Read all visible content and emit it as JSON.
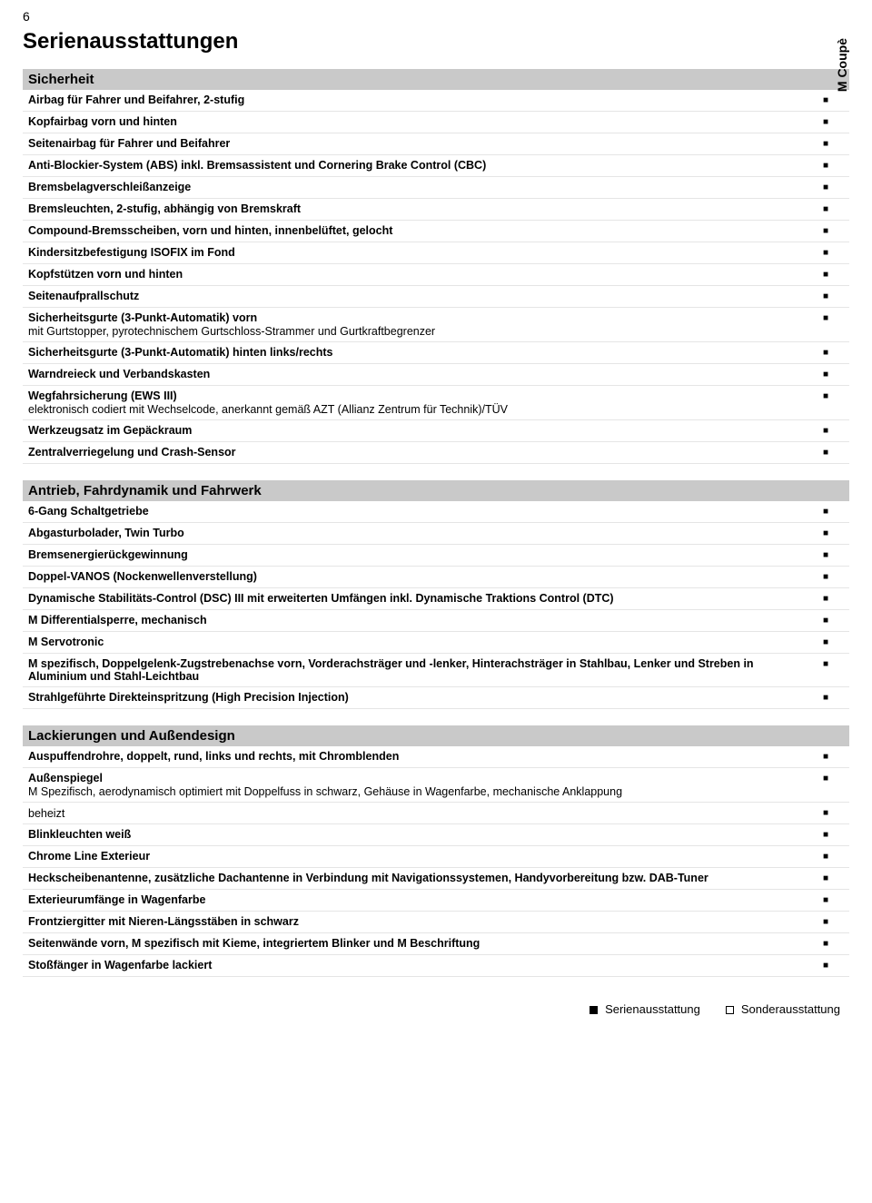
{
  "page_number": "6",
  "page_title": "Serienausstattungen",
  "column_label": "M Coupè",
  "mark_true": "■",
  "legend": {
    "standard": "Serienausstattung",
    "optional": "Sonderausstattung"
  },
  "sections": [
    {
      "title": "Sicherheit",
      "rows": [
        {
          "label": "Airbag für Fahrer und Beifahrer, 2-stufig",
          "std": true
        },
        {
          "label": "Kopfairbag vorn und hinten",
          "std": true
        },
        {
          "label": "Seitenairbag für Fahrer und Beifahrer",
          "std": true
        },
        {
          "label": "Anti-Blockier-System (ABS) inkl. Bremsassistent und Cornering Brake Control (CBC)",
          "std": true
        },
        {
          "label": "Bremsbelagverschleißanzeige",
          "std": true
        },
        {
          "label": "Bremsleuchten, 2-stufig, abhängig von Bremskraft",
          "std": true
        },
        {
          "label": "Compound-Bremsscheiben, vorn und hinten, innenbelüftet, gelocht",
          "std": true
        },
        {
          "label": "Kindersitzbefestigung ISOFIX im Fond",
          "std": true
        },
        {
          "label": "Kopfstützen vorn und hinten",
          "std": true
        },
        {
          "label": "Seitenaufprallschutz",
          "std": true
        },
        {
          "label": "Sicherheitsgurte (3-Punkt-Automatik) vorn",
          "sub": "mit Gurtstopper, pyrotechnischem Gurtschloss-Strammer und Gurtkraftbegrenzer",
          "std": true
        },
        {
          "label": "Sicherheitsgurte (3-Punkt-Automatik) hinten links/rechts",
          "std": true
        },
        {
          "label": "Warndreieck und Verbandskasten",
          "std": true
        },
        {
          "label": "Wegfahrsicherung (EWS III)",
          "sub": "elektronisch codiert mit Wechselcode, anerkannt gemäß AZT (Allianz Zentrum für Technik)/TÜV",
          "std": true
        },
        {
          "label": "Werkzeugsatz im Gepäckraum",
          "std": true
        },
        {
          "label": "Zentralverriegelung und Crash-Sensor",
          "std": true
        }
      ]
    },
    {
      "title": "Antrieb, Fahrdynamik und Fahrwerk",
      "rows": [
        {
          "label": "6-Gang Schaltgetriebe",
          "std": true
        },
        {
          "label": "Abgasturbolader, Twin Turbo",
          "std": true
        },
        {
          "label": "Bremsenergierückgewinnung",
          "std": true
        },
        {
          "label": "Doppel-VANOS (Nockenwellenverstellung)",
          "std": true
        },
        {
          "label": "Dynamische Stabilitäts-Control (DSC) III mit erweiterten Umfängen inkl. Dynamische Traktions Control (DTC)",
          "std": true
        },
        {
          "label": "M Differentialsperre, mechanisch",
          "std": true
        },
        {
          "label": "M Servotronic",
          "std": true
        },
        {
          "label": "M spezifisch, Doppelgelenk-Zugstrebenachse vorn, Vorderachsträger und -lenker, Hinterachsträger in Stahlbau, Lenker und Streben in Aluminium und Stahl-Leichtbau",
          "std": true
        },
        {
          "label": "Strahlgeführte Direkteinspritzung (High Precision Injection)",
          "std": true
        }
      ]
    },
    {
      "title": "Lackierungen und Außendesign",
      "rows": [
        {
          "label": "Auspuffendrohre, doppelt, rund, links und rechts, mit Chromblenden",
          "std": true
        },
        {
          "label": "Außenspiegel",
          "sub": "M Spezifisch, aerodynamisch optimiert mit Doppelfuss in schwarz, Gehäuse in Wagenfarbe, mechanische Anklappung",
          "std": true
        },
        {
          "label": "beheizt",
          "plain": true,
          "std": true
        },
        {
          "label": "Blinkleuchten weiß",
          "std": true
        },
        {
          "label": "Chrome Line Exterieur",
          "std": true
        },
        {
          "label": "Heckscheibenantenne, zusätzliche Dachantenne in Verbindung mit Navigationssystemen, Handyvorbereitung bzw. DAB-Tuner",
          "std": true
        },
        {
          "label": "Exterieurumfänge in Wagenfarbe",
          "std": true
        },
        {
          "label": "Frontziergitter mit Nieren-Längsstäben in schwarz",
          "std": true
        },
        {
          "label": "Seitenwände vorn, M spezifisch mit Kieme, integriertem Blinker und M Beschriftung",
          "std": true
        },
        {
          "label": "Stoßfänger in Wagenfarbe lackiert",
          "std": true
        }
      ]
    }
  ]
}
